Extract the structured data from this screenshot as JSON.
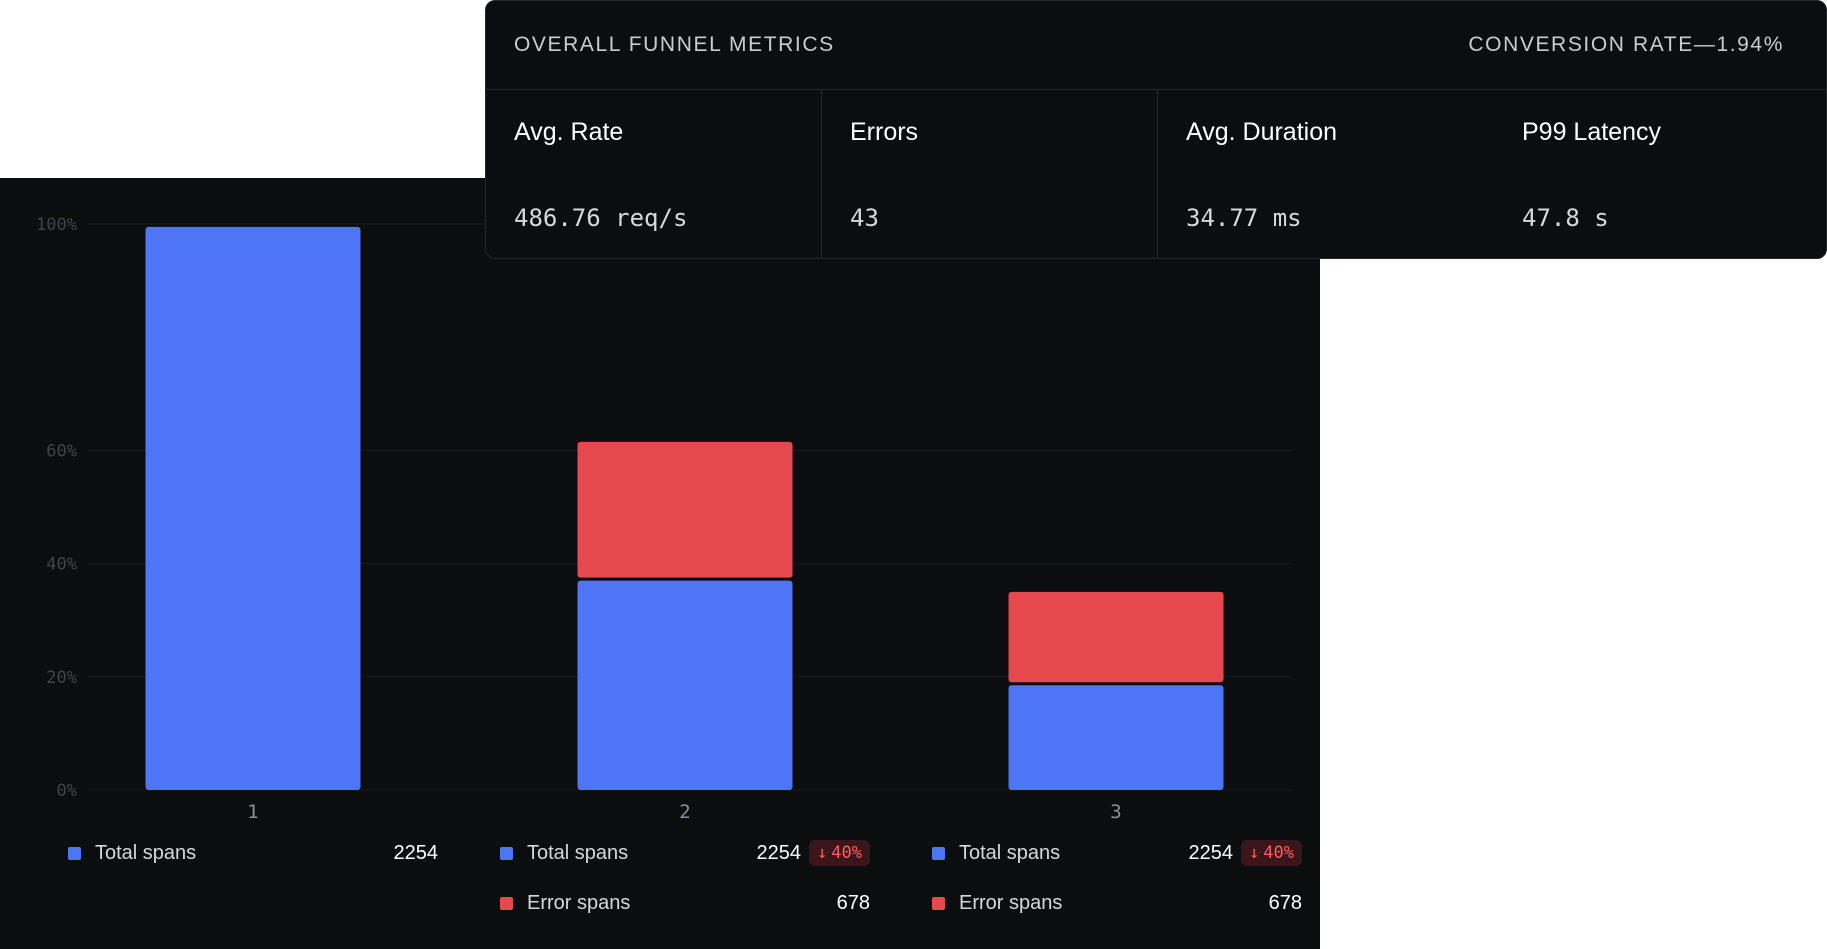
{
  "metrics": {
    "title": "OVERALL FUNNEL METRICS",
    "conversion_rate": "CONVERSION RATE—1.94%",
    "items": [
      {
        "label": "Avg. Rate",
        "value": "486.76 req/s"
      },
      {
        "label": "Errors",
        "value": "43"
      },
      {
        "label": "Avg. Duration",
        "value": "34.77 ms"
      },
      {
        "label": "P99 Latency",
        "value": "47.8 s"
      }
    ]
  },
  "chart_data": {
    "type": "bar",
    "stacked": true,
    "categories": [
      "1",
      "2",
      "3"
    ],
    "series": [
      {
        "name": "Total spans",
        "color": "#4e75f6",
        "values": [
          99.5,
          37,
          18.5
        ]
      },
      {
        "name": "Error spans",
        "color": "#e5484d",
        "values": [
          0,
          24.5,
          16.5
        ]
      }
    ],
    "yticks": [
      {
        "value": 0,
        "label": "0%"
      },
      {
        "value": 20,
        "label": "20%"
      },
      {
        "value": 40,
        "label": "40%"
      },
      {
        "value": 60,
        "label": "60%"
      },
      {
        "value": 100,
        "label": "100%"
      }
    ],
    "ylim": [
      0,
      100
    ],
    "grid": true,
    "legend_position": "bottom"
  },
  "legend": [
    {
      "rows": [
        {
          "label": "Total spans",
          "value": "2254",
          "color": "#4e75f6",
          "badge": ""
        }
      ]
    },
    {
      "rows": [
        {
          "label": "Total spans",
          "value": "2254",
          "color": "#4e75f6",
          "badge": "40%"
        },
        {
          "label": "Error spans",
          "value": "678",
          "color": "#e5484d",
          "badge": ""
        }
      ]
    },
    {
      "rows": [
        {
          "label": "Total spans",
          "value": "2254",
          "color": "#4e75f6",
          "badge": "40%"
        },
        {
          "label": "Error spans",
          "value": "678",
          "color": "#e5484d",
          "badge": ""
        }
      ]
    }
  ]
}
